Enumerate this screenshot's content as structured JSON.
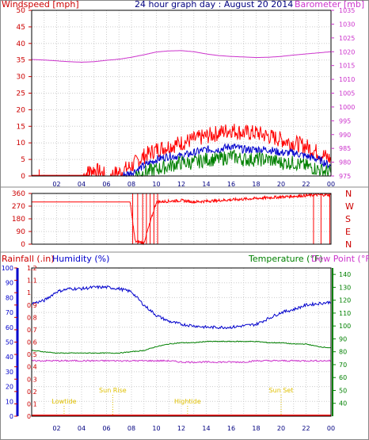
{
  "header": {
    "wind_label": "Windspeed [mph]",
    "title": "24 hour graph day : August 20 2014",
    "baro_label": "Barometer [mb]"
  },
  "bottom_header": {
    "rain_label": "Rainfall (.in)",
    "humidity_label": "Humidity (%)",
    "temp_label": "Temperature (°F)",
    "dew_label": "Dew Point (°F)"
  },
  "colors": {
    "wind": "#ff0000",
    "gust_red": "#ff0000",
    "wind_blue": "#0000cc",
    "wind_green": "#008000",
    "barometer": "#cc33cc",
    "direction": "#ff0000",
    "humidity": "#0000cc",
    "temperature": "#008000",
    "dewpoint": "#cc33cc",
    "rain": "#ff0000",
    "events": "#e0c000",
    "axis_blue": "#0000cc"
  },
  "chart_data": [
    {
      "type": "line",
      "title": "24 hour graph day : August 20 2014",
      "x_ticks": [
        "02",
        "04",
        "06",
        "08",
        "10",
        "12",
        "14",
        "16",
        "18",
        "20",
        "22",
        "00"
      ],
      "y_left": {
        "label": "Windspeed [mph]",
        "ticks": [
          0,
          5,
          10,
          15,
          20,
          25,
          30,
          35,
          40,
          45,
          50
        ],
        "range": [
          0,
          50
        ]
      },
      "y_right": {
        "label": "Barometer [mb]",
        "ticks": [
          975,
          980,
          985,
          990,
          995,
          1000,
          1005,
          1010,
          1015,
          1020,
          1025,
          1030,
          1035
        ],
        "range": [
          975,
          1035
        ]
      },
      "series": [
        {
          "name": "Barometer [mb]",
          "axis": "right",
          "x": [
            0,
            1,
            2,
            3,
            4,
            5,
            6,
            7,
            8,
            9,
            10,
            11,
            12,
            13,
            14,
            15,
            16,
            17,
            18,
            19,
            20,
            21,
            22,
            23,
            24
          ],
          "y": [
            1017.2,
            1017.0,
            1016.7,
            1016.4,
            1016.2,
            1016.4,
            1016.9,
            1017.3,
            1018.0,
            1018.9,
            1019.9,
            1020.3,
            1020.4,
            1020.0,
            1019.2,
            1018.6,
            1018.3,
            1018.1,
            1017.9,
            1018.0,
            1018.3,
            1018.8,
            1019.2,
            1019.6,
            1020.0
          ]
        },
        {
          "name": "Wind gust",
          "axis": "left",
          "x": [
            0,
            1,
            2,
            3,
            4,
            5,
            6,
            7,
            8,
            9,
            10,
            11,
            12,
            13,
            14,
            15,
            16,
            17,
            18,
            19,
            20,
            21,
            22,
            23,
            24
          ],
          "y": [
            0,
            0,
            0,
            0,
            0,
            2,
            0,
            1,
            3,
            6,
            8,
            9,
            10,
            11,
            12,
            13,
            14,
            13,
            13,
            12,
            11,
            10,
            9,
            7,
            5
          ]
        },
        {
          "name": "Wind average",
          "axis": "left",
          "x": [
            0,
            1,
            2,
            3,
            4,
            5,
            6,
            7,
            8,
            9,
            10,
            11,
            12,
            13,
            14,
            15,
            16,
            17,
            18,
            19,
            20,
            21,
            22,
            23,
            24
          ],
          "y": [
            0,
            0,
            0,
            0,
            0,
            0,
            0,
            0,
            1,
            3,
            5,
            6,
            6,
            7,
            8,
            8,
            9,
            8,
            8,
            8,
            7,
            7,
            6,
            5,
            3
          ]
        },
        {
          "name": "Wind speed",
          "axis": "left",
          "x": [
            0,
            1,
            2,
            3,
            4,
            5,
            6,
            7,
            8,
            9,
            10,
            11,
            12,
            13,
            14,
            15,
            16,
            17,
            18,
            19,
            20,
            21,
            22,
            23,
            24
          ],
          "y": [
            0,
            0,
            0,
            0,
            0,
            0,
            0,
            0,
            0,
            1,
            2,
            3,
            4,
            4,
            5,
            5,
            6,
            5,
            5,
            5,
            4,
            4,
            3,
            2,
            1
          ]
        }
      ]
    },
    {
      "type": "line",
      "x_ticks": [
        "02",
        "04",
        "06",
        "08",
        "10",
        "12",
        "14",
        "16",
        "18",
        "20",
        "22",
        "00"
      ],
      "y_left": {
        "ticks": [
          0,
          90,
          180,
          270,
          360
        ],
        "range": [
          0,
          360
        ]
      },
      "y_right": {
        "labels": [
          "N",
          "W",
          "S",
          "E",
          "N"
        ]
      },
      "series": [
        {
          "name": "Wind direction",
          "x": [
            0,
            1,
            2,
            3,
            4,
            5,
            6,
            7,
            7.9,
            8.3,
            9,
            10,
            11,
            12,
            13,
            14,
            15,
            16,
            17,
            18,
            19,
            20,
            21,
            22,
            23,
            24
          ],
          "y": [
            300,
            300,
            300,
            300,
            300,
            300,
            300,
            300,
            300,
            20,
            10,
            300,
            305,
            310,
            300,
            305,
            310,
            315,
            320,
            325,
            330,
            335,
            340,
            345,
            350,
            350
          ]
        }
      ]
    },
    {
      "type": "line",
      "x_ticks": [
        "02",
        "04",
        "06",
        "08",
        "10",
        "12",
        "14",
        "16",
        "18",
        "20",
        "22",
        "00"
      ],
      "y_left_outer": {
        "label": "Rainfall (.in)",
        "ticks": [
          0,
          0.1,
          0.2,
          0.3,
          0.4,
          0.5,
          0.6,
          0.7,
          0.8,
          0.9,
          1,
          1.1,
          1.2
        ],
        "range": [
          0,
          1.2
        ]
      },
      "y_left_inner": {
        "label": "Humidity (%)",
        "ticks": [
          0,
          10,
          20,
          30,
          40,
          50,
          60,
          70,
          80,
          90,
          100
        ],
        "range": [
          0,
          100
        ]
      },
      "y_right": {
        "label": "Temperature (°F)",
        "ticks": [
          40,
          50,
          60,
          70,
          80,
          90,
          100,
          110,
          120,
          130,
          140
        ],
        "range": [
          30,
          145
        ]
      },
      "series": [
        {
          "name": "Humidity (%)",
          "axis": "humidity",
          "x": [
            0,
            1,
            2,
            3,
            4,
            5,
            6,
            7,
            8,
            9,
            10,
            11,
            12,
            13,
            14,
            15,
            16,
            17,
            18,
            19,
            20,
            21,
            22,
            23,
            24
          ],
          "y": [
            76,
            78,
            84,
            86,
            86,
            87,
            87,
            86,
            84,
            75,
            68,
            64,
            62,
            61,
            60,
            60,
            60,
            61,
            62,
            66,
            70,
            72,
            75,
            76,
            77
          ]
        },
        {
          "name": "Temperature (°F)",
          "axis": "temp",
          "x": [
            0,
            1,
            2,
            3,
            4,
            5,
            6,
            7,
            8,
            9,
            10,
            11,
            12,
            13,
            14,
            15,
            16,
            17,
            18,
            19,
            20,
            21,
            22,
            23,
            24
          ],
          "y": [
            81,
            80,
            79,
            79,
            79,
            79,
            79,
            79,
            80,
            81,
            84,
            86,
            87,
            87,
            88,
            88,
            88,
            88,
            88,
            87,
            87,
            86,
            86,
            84,
            83
          ]
        },
        {
          "name": "Dew Point (°F)",
          "axis": "temp",
          "x": [
            0,
            1,
            2,
            3,
            4,
            5,
            6,
            7,
            8,
            9,
            10,
            11,
            12,
            13,
            14,
            15,
            16,
            17,
            18,
            19,
            20,
            21,
            22,
            23,
            24
          ],
          "y": [
            73,
            73,
            73,
            73,
            73,
            73,
            73,
            73,
            73,
            73,
            73,
            73,
            72,
            72,
            72,
            72,
            72,
            72,
            73,
            73,
            73,
            73,
            73,
            73,
            73
          ]
        },
        {
          "name": "Rainfall (.in)",
          "axis": "rain",
          "x": [
            0,
            24
          ],
          "y": [
            0,
            0
          ]
        }
      ],
      "annotations": [
        {
          "text": "Lowtide",
          "x": 2.6
        },
        {
          "text": "Sun Rise",
          "x": 6.5
        },
        {
          "text": "Hightide",
          "x": 12.5
        },
        {
          "text": "Sun Set",
          "x": 20.0
        }
      ]
    }
  ]
}
